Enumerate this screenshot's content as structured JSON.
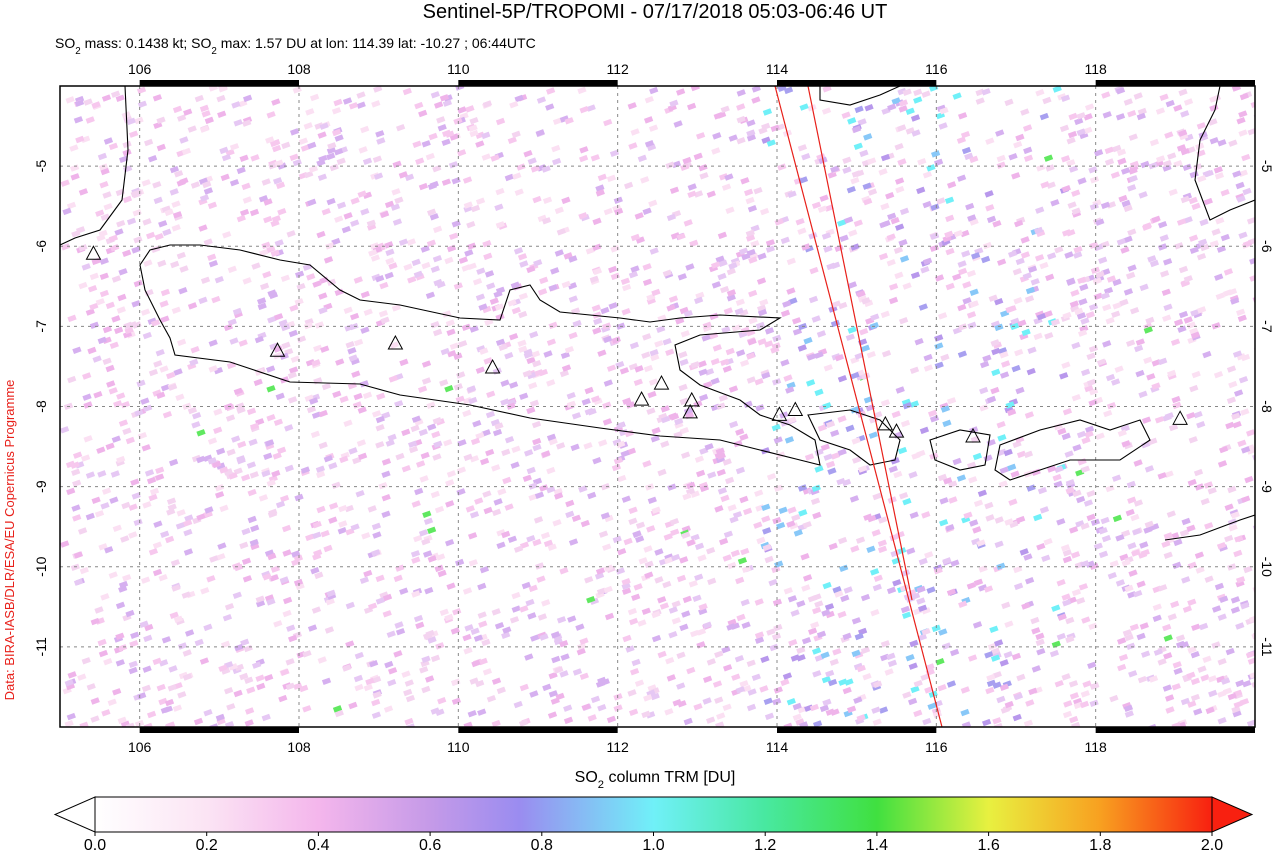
{
  "map": {
    "title": "Sentinel-5P/TROPOMI - 07/17/2018 05:03-06:46 UT",
    "subtitle_parts": [
      "SO",
      "2",
      " mass: 0.1438 kt; SO",
      "2",
      " max: 1.57 DU at lon: 114.39 lat: -10.27 ; 06:44UTC"
    ],
    "credit": "Data: BIRA-IASB/DLR/ESA/EU Copernicus Programme",
    "xlim": [
      105,
      120
    ],
    "ylim": [
      -12,
      -4
    ],
    "xticks": [
      106,
      108,
      110,
      112,
      114,
      116,
      118
    ],
    "yticks": [
      -5,
      -6,
      -7,
      -8,
      -9,
      -10,
      -11
    ],
    "grid": true,
    "volcanoes": {
      "lon": [
        105.42,
        107.73,
        109.21,
        110.43,
        112.3,
        112.55,
        112.93,
        112.91,
        114.03,
        114.23,
        115.36,
        115.5,
        116.46,
        119.06
      ],
      "lat": [
        -6.1,
        -7.31,
        -7.22,
        -7.52,
        -7.92,
        -7.72,
        -7.93,
        -8.08,
        -8.11,
        -8.05,
        -8.23,
        -8.32,
        -8.38,
        -8.16
      ]
    },
    "colorbar": {
      "label_parts": [
        "SO",
        "2",
        " column TRM [DU]"
      ],
      "lim": [
        0,
        2
      ],
      "ticks": [
        {
          "value": 0,
          "label": "0.0"
        },
        {
          "value": 0.2,
          "label": "0.2"
        },
        {
          "value": 0.4,
          "label": "0.4"
        },
        {
          "value": 0.6,
          "label": "0.6"
        },
        {
          "value": 0.8,
          "label": "0.8"
        },
        {
          "value": 1,
          "label": "1.0"
        },
        {
          "value": 1.2,
          "label": "1.2"
        },
        {
          "value": 1.4,
          "label": "1.4"
        },
        {
          "value": 1.6,
          "label": "1.6"
        },
        {
          "value": 1.8,
          "label": "1.8"
        },
        {
          "value": 2,
          "label": "2.0"
        }
      ]
    }
  }
}
